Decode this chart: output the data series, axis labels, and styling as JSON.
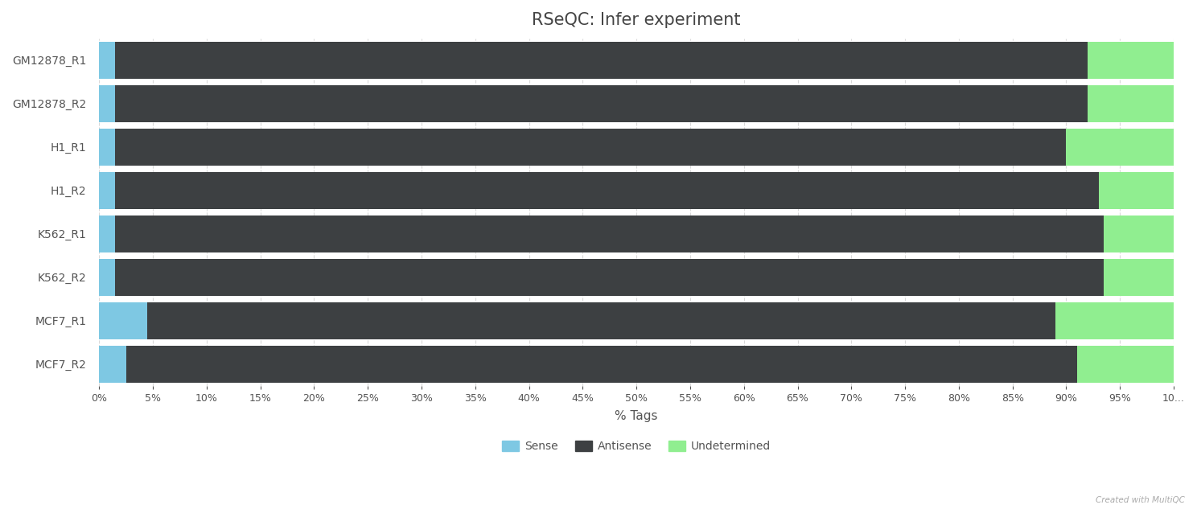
{
  "categories": [
    "GM12878_R1",
    "GM12878_R2",
    "H1_R1",
    "H1_R2",
    "K562_R1",
    "K562_R2",
    "MCF7_R1",
    "MCF7_R2"
  ],
  "sense": [
    1.5,
    1.5,
    1.5,
    1.5,
    1.5,
    1.5,
    4.5,
    2.5
  ],
  "antisense": [
    90.5,
    90.5,
    88.5,
    91.5,
    92.0,
    92.0,
    84.5,
    88.5
  ],
  "undetermined": [
    8.0,
    8.0,
    10.0,
    7.0,
    6.5,
    6.5,
    11.0,
    9.0
  ],
  "sense_color": "#7ec8e3",
  "antisense_color": "#3d4042",
  "undetermined_color": "#90ee90",
  "title": "RSeQC: Infer experiment",
  "xlabel": "% Tags",
  "background_color": "#ffffff",
  "plot_bg_color": "#ffffff",
  "grid_color": "#d0d0d0",
  "title_color": "#444444",
  "label_color": "#555555",
  "tick_label_color": "#555555",
  "legend_labels": [
    "Sense",
    "Antisense",
    "Undetermined"
  ],
  "xlim": [
    0,
    100
  ],
  "xticks": [
    0,
    5,
    10,
    15,
    20,
    25,
    30,
    35,
    40,
    45,
    50,
    55,
    60,
    65,
    70,
    75,
    80,
    85,
    90,
    95,
    100
  ],
  "xtick_labels": [
    "0%",
    "5%",
    "10%",
    "15%",
    "20%",
    "25%",
    "30%",
    "35%",
    "40%",
    "45%",
    "50%",
    "55%",
    "60%",
    "65%",
    "70%",
    "75%",
    "80%",
    "85%",
    "90%",
    "95%",
    "10..."
  ],
  "watermark": "Created with MultiQC",
  "bar_height": 0.85,
  "figsize": [
    14.88,
    6.33
  ],
  "dpi": 100
}
